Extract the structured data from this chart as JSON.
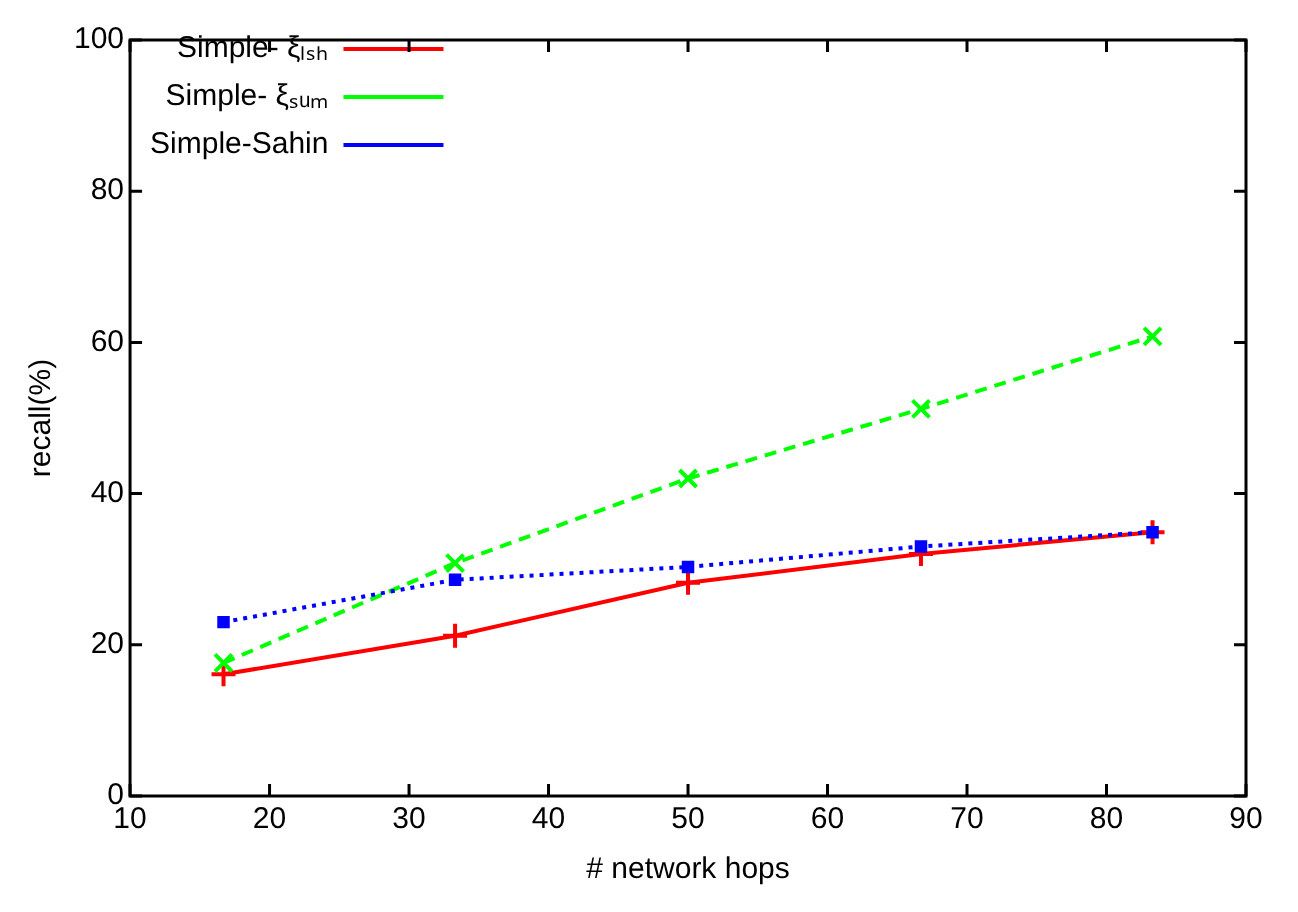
{
  "chart_data": {
    "type": "line",
    "xlabel": "# network hops",
    "ylabel": "recall(%)",
    "x": [
      16.7,
      33.3,
      50,
      66.7,
      83.3
    ],
    "series": [
      {
        "name": "Simple- ξₗₛₕ",
        "color": "#ff0000",
        "values": [
          16.1,
          21.2,
          28.2,
          32,
          34.9
        ],
        "marker": "cross",
        "line_style": "solid"
      },
      {
        "name": "Simple- ξₛᵤₘ",
        "color": "#00ff00",
        "values": [
          17.6,
          30.8,
          42,
          51.2,
          60.8
        ],
        "marker": "cross",
        "line_style": "dashed"
      },
      {
        "name": "Simple-Sahin",
        "color": "#0000ff",
        "values": [
          23,
          28.6,
          30.3,
          33,
          34.9
        ],
        "marker": "square",
        "line_style": "dotted"
      }
    ],
    "xlim": [
      10,
      90
    ],
    "xticks": [
      10,
      20,
      30,
      40,
      50,
      60,
      70,
      80,
      90
    ],
    "ylim": [
      0,
      100
    ],
    "yticks": [
      0,
      20,
      40,
      60,
      80,
      100
    ],
    "grid": false,
    "legend": "top left"
  }
}
